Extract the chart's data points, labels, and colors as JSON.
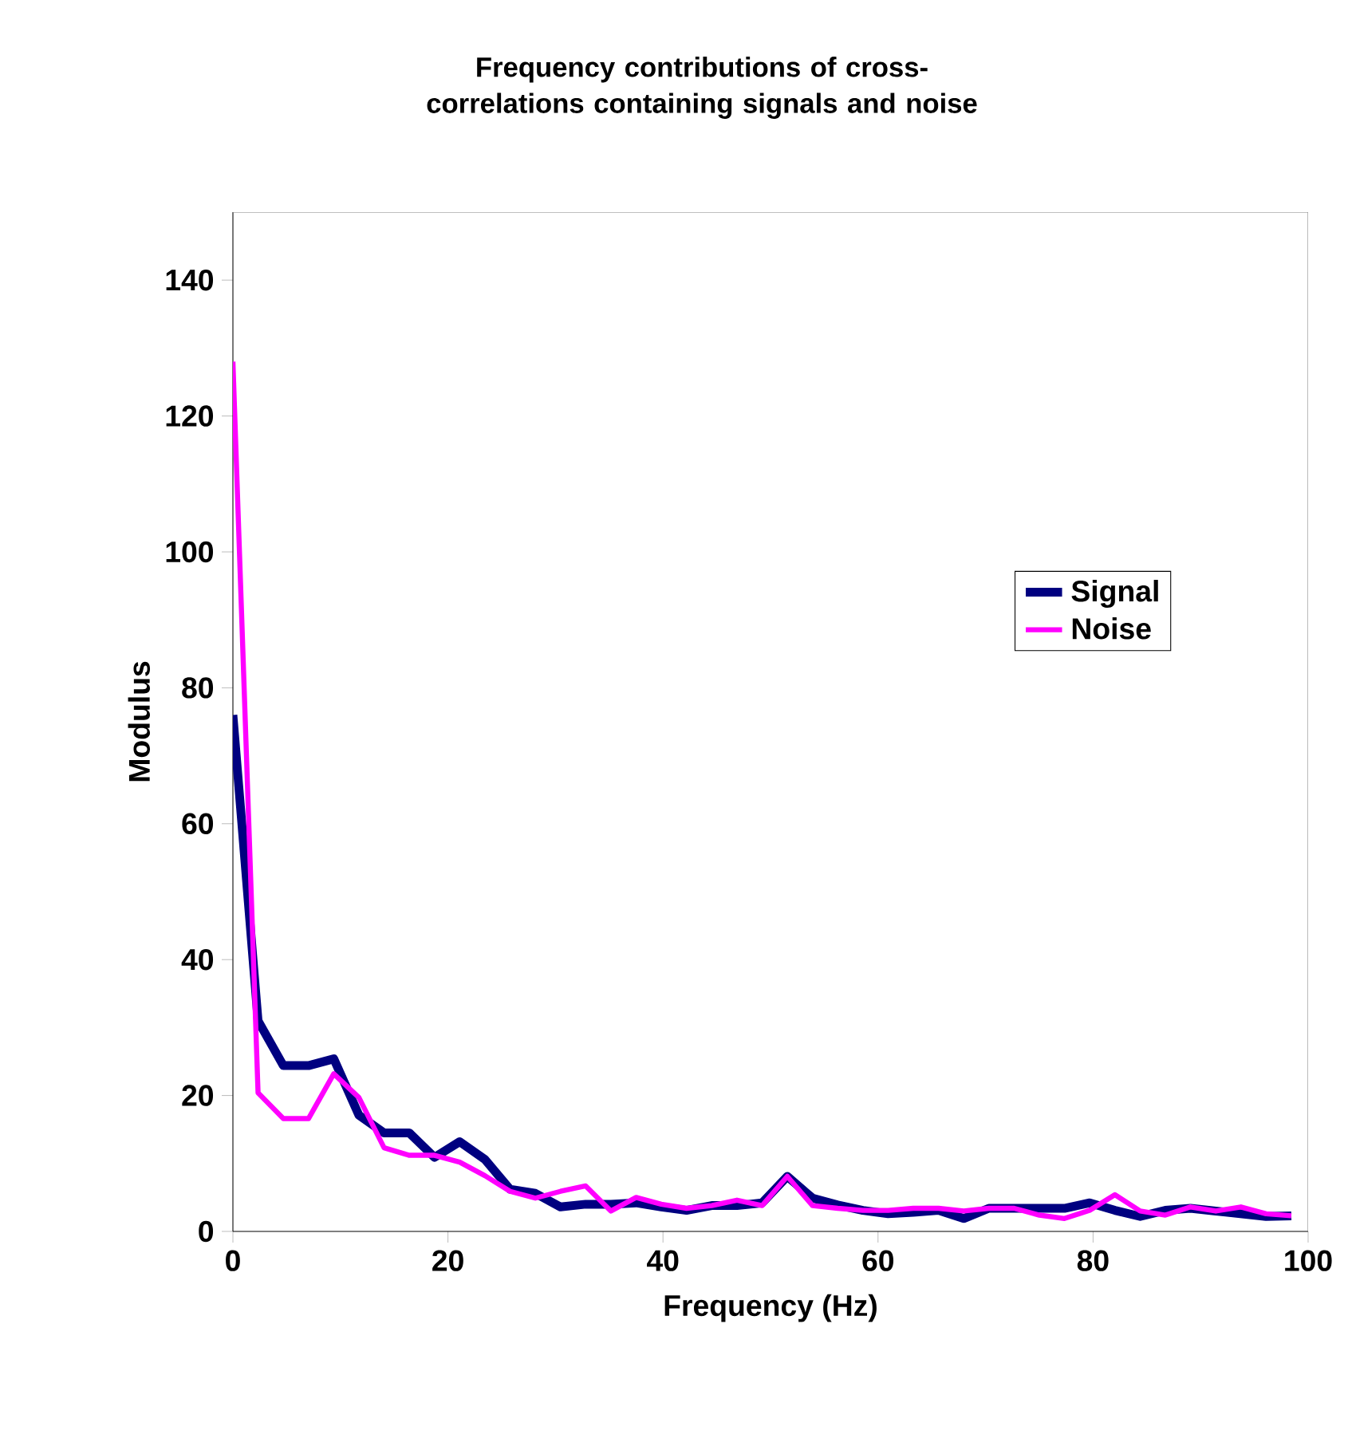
{
  "chart_data": {
    "type": "line",
    "title": "Frequency contributions of cross-correlations containing signals and noise",
    "xlabel": "Frequency (Hz)",
    "ylabel": "Modulus",
    "x": [
      0,
      2.34,
      4.69,
      7.03,
      9.38,
      11.72,
      14.06,
      16.41,
      18.75,
      21.09,
      23.44,
      25.78,
      28.13,
      30.47,
      32.81,
      35.16,
      37.5,
      39.84,
      42.19,
      44.53,
      46.88,
      49.22,
      51.56,
      53.91,
      56.25,
      58.59,
      60.94,
      63.28,
      65.63,
      67.97,
      70.31,
      72.66,
      75,
      77.34,
      79.69,
      82.03,
      84.38,
      86.72,
      89.06,
      91.41,
      93.75,
      96.09,
      98.44
    ],
    "series": [
      {
        "name": "Signal",
        "color": "#000080",
        "values": [
          76,
          31,
          24.4,
          24.4,
          25.4,
          17.1,
          14.5,
          14.5,
          10.9,
          13.2,
          10.6,
          6.2,
          5.6,
          3.6,
          4,
          4,
          4.2,
          3.6,
          3.1,
          3.8,
          3.8,
          4.2,
          8.1,
          4.9,
          3.9,
          3.1,
          2.6,
          2.8,
          3.1,
          1.9,
          3.4,
          3.4,
          3.4,
          3.4,
          4.2,
          3.1,
          2.2,
          3.1,
          3.4,
          3,
          2.6,
          2.2,
          2.3
        ]
      },
      {
        "name": "Noise",
        "color": "#ff00ff",
        "values": [
          128,
          20.4,
          16.6,
          16.6,
          23.2,
          19.7,
          12.3,
          11.2,
          11.2,
          10.2,
          8.2,
          5.9,
          4.9,
          5.9,
          6.7,
          3,
          5,
          4,
          3.4,
          3.8,
          4.6,
          3.8,
          8.1,
          3.8,
          3.4,
          3.1,
          3.1,
          3.4,
          3.4,
          3,
          3.4,
          3.4,
          2.4,
          1.9,
          3.1,
          5.4,
          3,
          2.4,
          3.6,
          3,
          3.6,
          2.6,
          2.3
        ]
      }
    ],
    "xlim": [
      0,
      100
    ],
    "ylim": [
      0,
      150
    ],
    "xticks": [
      0,
      20,
      40,
      60,
      80,
      100
    ],
    "yticks": [
      0,
      20,
      40,
      60,
      80,
      100,
      120,
      140
    ],
    "legend": "right",
    "grid": false
  }
}
